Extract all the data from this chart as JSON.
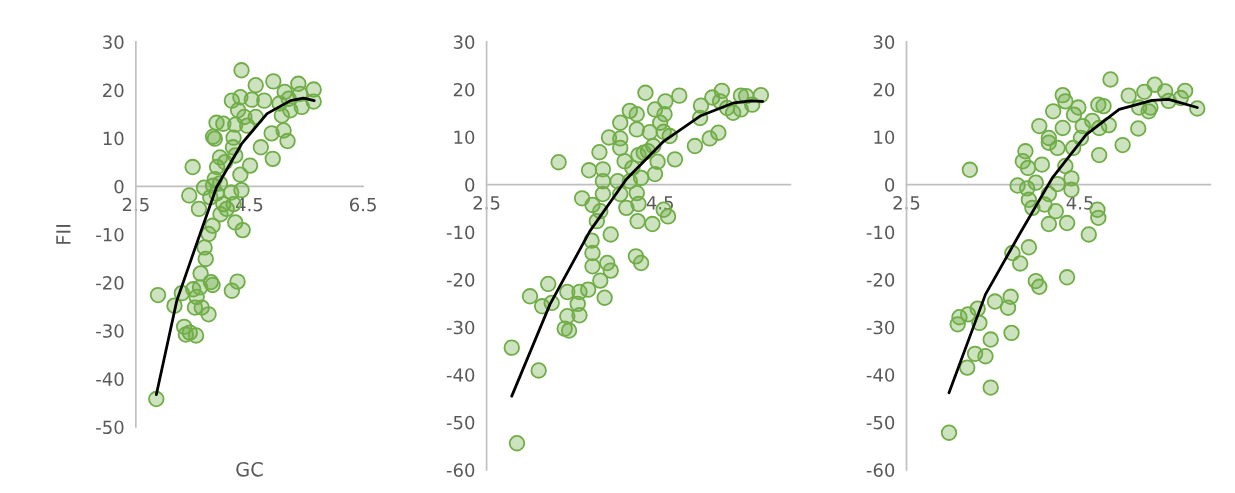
{
  "chart_data": [
    {
      "type": "scatter",
      "xlabel": "GC",
      "ylabel": "FII",
      "xlim": [
        2.5,
        6.5
      ],
      "xticks": [
        2.5,
        4.5,
        6.5
      ],
      "ylim": [
        -50,
        30
      ],
      "yticks": [
        -50,
        -40,
        -30,
        -20,
        -10,
        0,
        10,
        20,
        30
      ],
      "series": [
        {
          "marker": "circle",
          "color": "#70ad47",
          "x": [
            2.86,
            2.89,
            3.18,
            3.31,
            3.5,
            3.44,
            3.61,
            3.35,
            3.38,
            3.45,
            3.56,
            3.51,
            3.57,
            3.54,
            3.66,
            3.78,
            3.63,
            3.82,
            3.85,
            3.64,
            3.73,
            3.71,
            3.78,
            3.85,
            4.19,
            4.29,
            3.86,
            3.89,
            3.92,
            4.04,
            3.7,
            3.81,
            3.92,
            3.86,
            3.98,
            3.89,
            3.93,
            3.98,
            4.07,
            3.99,
            4.04,
            4.1,
            4.22,
            4.25,
            4.38,
            4.18,
            4.36,
            4.34,
            4.51,
            4.25,
            4.21,
            4.22,
            4.25,
            4.3,
            4.19,
            4.34,
            4.46,
            4.41,
            4.54,
            4.61,
            4.36,
            4.61,
            4.76,
            4.7,
            4.91,
            4.89,
            4.92,
            5.12,
            5.03,
            5.07,
            5.1,
            5.17,
            5.19,
            5.36,
            5.39,
            5.42,
            5.63,
            5.63,
            5.22
          ],
          "values": [
            -44.2,
            -22.6,
            -24.8,
            -22.2,
            4.0,
            -1.9,
            -4.7,
            -29.2,
            -30.8,
            -30.4,
            -31.0,
            -21.4,
            -23.0,
            -25.2,
            -25.2,
            -26.6,
            -21.0,
            -19.9,
            -20.5,
            -18.1,
            -15.1,
            -12.7,
            -9.9,
            -8.2,
            -21.7,
            -19.8,
            10.3,
            9.9,
            13.2,
            13.0,
            -0.3,
            -2.3,
            -1.5,
            0.1,
            0.6,
            1.5,
            4.0,
            6.0,
            5.0,
            -5.8,
            -3.7,
            -4.7,
            -3.7,
            -7.5,
            -9.1,
            -1.3,
            -0.8,
            2.4,
            4.3,
            6.4,
            8.1,
            10.1,
            12.8,
            15.8,
            17.8,
            18.5,
            12.6,
            14.4,
            18.0,
            14.4,
            24.1,
            21.0,
            17.8,
            8.1,
            5.7,
            11.0,
            21.8,
            19.6,
            17.2,
            14.7,
            11.6,
            9.4,
            18.2,
            21.3,
            19.2,
            16.5,
            20.1,
            17.6,
            15.8
          ]
        },
        {
          "type": "line",
          "marker": "none",
          "color": "#000000",
          "x": [
            2.86,
            3.22,
            3.63,
            3.92,
            4.36,
            4.81,
            5.22,
            5.45,
            5.64
          ],
          "values": [
            -43.3,
            -23.8,
            -9.9,
            -0.2,
            8.8,
            15.1,
            17.8,
            18.3,
            17.8
          ]
        }
      ]
    },
    {
      "type": "scatter",
      "xlim": [
        2.5,
        6.0
      ],
      "xticks": [
        2.5,
        4.5
      ],
      "ylim": [
        -60,
        30
      ],
      "yticks": [
        -60,
        -50,
        -40,
        -30,
        -20,
        -10,
        0,
        10,
        20,
        30
      ],
      "series": [
        {
          "marker": "circle",
          "color": "#70ad47",
          "x": [
            2.79,
            2.85,
            3.1,
            3.0,
            3.14,
            3.25,
            3.21,
            3.33,
            3.43,
            3.43,
            3.4,
            3.45,
            3.55,
            3.57,
            3.57,
            3.67,
            3.6,
            3.68,
            3.72,
            3.71,
            3.72,
            3.72,
            3.77,
            3.81,
            3.81,
            3.86,
            3.89,
            3.93,
            3.93,
            3.8,
            3.84,
            3.84,
            3.84,
            3.91,
            4.04,
            4.04,
            4.04,
            4.01,
            4.04,
            4.09,
            4.11,
            4.15,
            4.23,
            4.23,
            4.18,
            4.15,
            4.23,
            4.25,
            4.28,
            4.24,
            4.22,
            4.28,
            4.25,
            4.31,
            4.36,
            4.38,
            4.33,
            4.41,
            4.47,
            4.44,
            4.42,
            4.44,
            4.5,
            4.55,
            4.56,
            4.54,
            4.61,
            4.54,
            4.59,
            4.67,
            4.72,
            4.9,
            4.96,
            4.97,
            5.07,
            5.1,
            5.17,
            5.21,
            5.19,
            5.34,
            5.43,
            5.49,
            5.56,
            5.66,
            5.27,
            5.43
          ],
          "values": [
            -34.3,
            -54.4,
            -39.1,
            -23.5,
            -25.6,
            -24.9,
            -20.9,
            4.7,
            -22.6,
            -27.7,
            -30.3,
            -30.7,
            -25.1,
            -22.6,
            -27.5,
            -22.1,
            -2.9,
            3.0,
            -4.3,
            -11.8,
            -14.4,
            -17.2,
            -7.7,
            -5.6,
            -20.2,
            -23.8,
            -16.5,
            -18.1,
            -10.5,
            6.8,
            3.2,
            0.7,
            -2.0,
            9.9,
            9.7,
            7.7,
            13.0,
            0.7,
            -2.0,
            4.9,
            -4.9,
            15.5,
            14.8,
            11.6,
            3.5,
            0.7,
            -1.8,
            -4.1,
            1.4,
            -7.7,
            -15.1,
            -16.5,
            6.2,
            6.7,
            7.0,
            11.0,
            19.3,
            -8.3,
            4.8,
            2.2,
            8.1,
            15.8,
            13.0,
            14.8,
            17.5,
            11.1,
            10.2,
            -5.3,
            -6.7,
            5.3,
            18.7,
            8.1,
            14.0,
            16.6,
            9.7,
            18.3,
            10.9,
            19.7,
            17.5,
            15.1,
            18.7,
            18.6,
            16.8,
            18.8,
            16.1,
            15.8
          ]
        },
        {
          "type": "line",
          "marker": "none",
          "color": "#000000",
          "x": [
            2.79,
            3.23,
            3.69,
            4.11,
            4.54,
            4.96,
            5.35,
            5.54,
            5.68
          ],
          "values": [
            -44.5,
            -25.2,
            -9.8,
            1.1,
            9.1,
            14.4,
            17.2,
            17.6,
            17.5
          ]
        }
      ]
    },
    {
      "type": "scatter",
      "xlim": [
        2.5,
        6.0
      ],
      "xticks": [
        2.5,
        4.5
      ],
      "ylim": [
        -60,
        30
      ],
      "yticks": [
        -60,
        -50,
        -40,
        -30,
        -20,
        -10,
        0,
        10,
        20,
        30
      ],
      "series": [
        {
          "marker": "circle",
          "color": "#70ad47",
          "x": [
            2.99,
            3.23,
            3.09,
            3.11,
            3.21,
            3.32,
            3.34,
            3.2,
            3.29,
            3.41,
            3.47,
            3.47,
            3.52,
            3.67,
            3.7,
            3.71,
            3.72,
            3.81,
            3.91,
            3.99,
            4.03,
            4.35,
            4.6,
            4.7,
            4.71,
            4.14,
            4.35,
            4.22,
            4.09,
            3.95,
            3.91,
            3.78,
            3.89,
            3.99,
            3.87,
            3.84,
            3.9,
            4.06,
            4.14,
            4.24,
            4.4,
            4.4,
            4.33,
            4.42,
            4.24,
            4.14,
            4.14,
            4.03,
            4.19,
            4.3,
            4.3,
            4.33,
            4.43,
            4.48,
            4.53,
            4.51,
            4.64,
            4.71,
            4.72,
            4.77,
            4.72,
            4.83,
            4.85,
            4.99,
            5.06,
            5.17,
            5.18,
            5.24,
            5.29,
            5.31,
            5.36,
            5.48,
            5.52,
            5.66,
            5.71,
            5.85
          ],
          "values": [
            -52.2,
            3.1,
            -29.4,
            -27.9,
            -27.3,
            -26.1,
            -29.1,
            -38.5,
            -35.6,
            -36.1,
            -32.6,
            -42.7,
            -24.6,
            -25.9,
            -23.6,
            -31.2,
            -14.4,
            -16.6,
            -13.2,
            -20.3,
            -21.5,
            -19.5,
            -10.5,
            -5.3,
            -7.0,
            -8.3,
            -8.1,
            -5.6,
            -4.2,
            -4.9,
            -3.2,
            -0.2,
            -0.8,
            0.4,
            7.0,
            4.9,
            3.5,
            4.2,
            -2.0,
            0.1,
            -1.1,
            1.3,
            3.9,
            7.7,
            7.7,
            8.8,
            9.8,
            12.3,
            15.4,
            11.9,
            18.8,
            17.5,
            14.7,
            16.2,
            12.3,
            9.8,
            13.4,
            16.8,
            6.2,
            16.5,
            11.9,
            12.5,
            22.1,
            8.3,
            18.7,
            11.8,
            16.2,
            19.5,
            15.4,
            16.2,
            21.0,
            19.6,
            17.6,
            18.2,
            19.7,
            16.0
          ]
        },
        {
          "type": "line",
          "marker": "none",
          "color": "#000000",
          "x": [
            2.99,
            3.41,
            3.8,
            4.18,
            4.57,
            4.95,
            5.33,
            5.52,
            5.85
          ],
          "values": [
            -43.8,
            -23.1,
            -10.5,
            1.4,
            10.5,
            15.8,
            17.7,
            17.9,
            16.2
          ]
        }
      ]
    }
  ]
}
